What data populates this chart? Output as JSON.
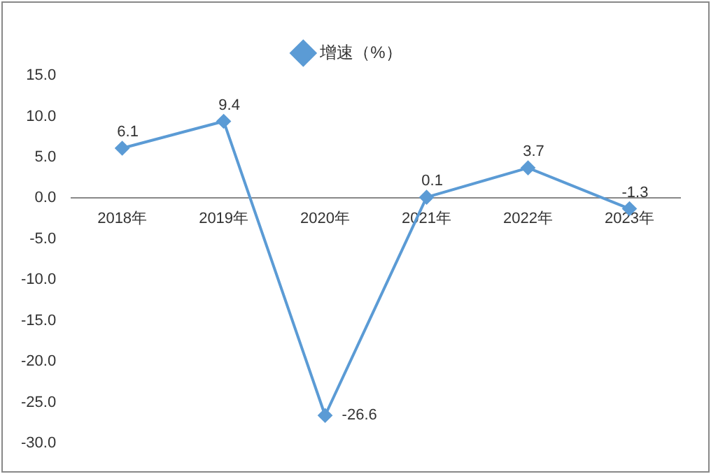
{
  "chart_data": {
    "type": "line",
    "categories": [
      "2018年",
      "2019年",
      "2020年",
      "2021年",
      "2022年",
      "2023年"
    ],
    "series": [
      {
        "name": "增速（%）",
        "color": "#5b9bd5",
        "values": [
          6.1,
          9.4,
          -26.6,
          0.1,
          3.7,
          -1.3
        ]
      }
    ],
    "ylim": [
      -30,
      15
    ],
    "yticks": [
      {
        "value": -30,
        "label": "-30.0"
      },
      {
        "value": -25,
        "label": "-25.0"
      },
      {
        "value": -20,
        "label": "-20.0"
      },
      {
        "value": -15,
        "label": "-15.0"
      },
      {
        "value": -10,
        "label": "-10.0"
      },
      {
        "value": -5,
        "label": "-5.0"
      },
      {
        "value": 0,
        "label": "0.0"
      },
      {
        "value": 5,
        "label": "5.0"
      },
      {
        "value": 10,
        "label": "10.0"
      },
      {
        "value": 15,
        "label": "15.0"
      }
    ],
    "legend": "top",
    "marker": "diamond",
    "line_style": "solid",
    "data_labels": true,
    "grid": false
  }
}
